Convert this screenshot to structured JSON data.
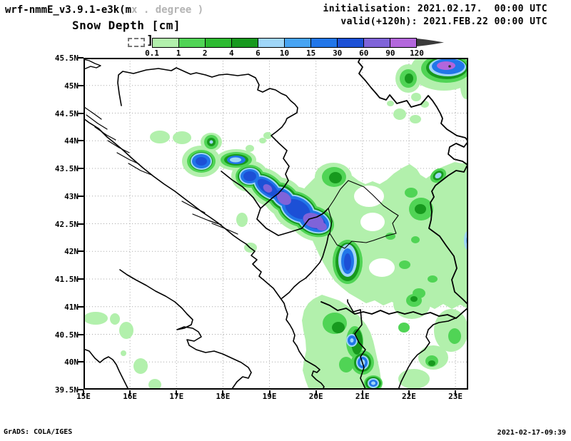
{
  "header": {
    "title_main": "wrf-nmmE_v3.9.1-e3k(m",
    "title_note": "x . degree )",
    "subtitle": "Snow Depth [cm]",
    "init_line": "initialisation: 2021.02.17.  00:00 UTC",
    "valid_line": "valid(+120h): 2021.FEB.22 00:00 UTC"
  },
  "colorbar": {
    "bracket": "]",
    "levels": [
      "0.1",
      "1",
      "2",
      "4",
      "6",
      "10",
      "15",
      "30",
      "60",
      "90",
      "120"
    ],
    "segment_colors": [
      "#b2f0ac",
      "#50d455",
      "#2cba30",
      "#17991e",
      "#9fd6f8",
      "#47a4f3",
      "#2176e9",
      "#1c50d6",
      "#7f63d9",
      "#b366dc"
    ],
    "overflow_arrow_color": "#3b3b3b"
  },
  "palette": {
    "g1": "#b2f0ac",
    "g2": "#50d455",
    "g3": "#2cba30",
    "g4": "#17991e",
    "b1": "#9fd6f8",
    "b2": "#47a4f3",
    "b3": "#2176e9",
    "b4": "#1c50d6",
    "v1": "#7f63d9",
    "v2": "#b366dc",
    "ar": "#3b3b3b",
    "grid": "#a8a8a8"
  },
  "map": {
    "lat_labels": [
      {
        "text": "45.5N",
        "lat": 45.5
      },
      {
        "text": "45N",
        "lat": 45
      },
      {
        "text": "44.5N",
        "lat": 44.5
      },
      {
        "text": "44N",
        "lat": 44
      },
      {
        "text": "43.5N",
        "lat": 43.5
      },
      {
        "text": "43N",
        "lat": 43
      },
      {
        "text": "42.5N",
        "lat": 42.5
      },
      {
        "text": "42N",
        "lat": 42
      },
      {
        "text": "41.5N",
        "lat": 41.5
      },
      {
        "text": "41N",
        "lat": 41
      },
      {
        "text": "40.5N",
        "lat": 40.5
      },
      {
        "text": "40N",
        "lat": 40
      },
      {
        "text": "39.5N",
        "lat": 39.5
      }
    ],
    "lon_labels": [
      {
        "text": "15E",
        "lon": 15
      },
      {
        "text": "16E",
        "lon": 16
      },
      {
        "text": "17E",
        "lon": 17
      },
      {
        "text": "18E",
        "lon": 18
      },
      {
        "text": "19E",
        "lon": 19
      },
      {
        "text": "20E",
        "lon": 20
      },
      {
        "text": "21E",
        "lon": 21
      },
      {
        "text": "22E",
        "lon": 22
      },
      {
        "text": "23E",
        "lon": 23
      }
    ]
  },
  "footer": {
    "credit": "GrADS: COLA/IGES",
    "timestamp": "2021-02-17-09:39"
  }
}
